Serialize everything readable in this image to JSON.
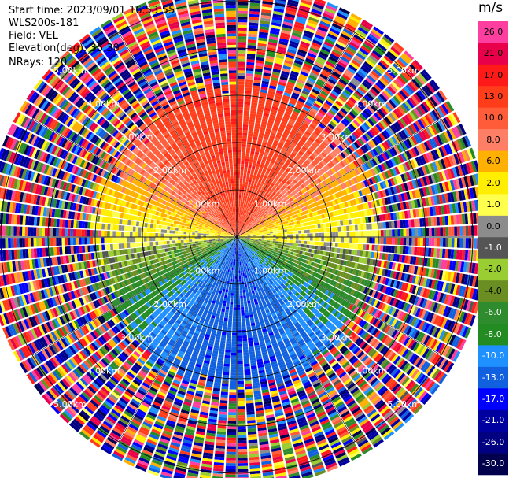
{
  "info": {
    "start_time": "Start time: 2023/09/01 16:53:55",
    "instrument": "WLS200s-181",
    "field": "Field: VEL",
    "elevation": "Elevation(deg): 35.30",
    "nrays": "NRays: 120"
  },
  "colorbar": {
    "title": "m/s",
    "labels": [
      "26.0",
      "21.0",
      "17.0",
      "13.0",
      "10.0",
      "8.0",
      "6.0",
      "2.0",
      "1.0",
      "0.0",
      "-1.0",
      "-2.0",
      "-4.0",
      "-6.0",
      "-8.0",
      "-10.0",
      "-13.0",
      "-17.0",
      "-21.0",
      "-26.0",
      "-30.0"
    ],
    "colors": [
      "#ff3fa0",
      "#e8004a",
      "#ff1a1a",
      "#ff3d1a",
      "#ff5c3a",
      "#ff7f66",
      "#ffb000",
      "#ffee00",
      "#ffff4d",
      "#8c8c8c",
      "#555555",
      "#9acd32",
      "#6b8e23",
      "#2e8b2e",
      "#228b22",
      "#1e90ff",
      "#1060e0",
      "#0000ff",
      "#0000a0",
      "#000080",
      "#00004d"
    ],
    "light_text": [
      false,
      false,
      false,
      false,
      false,
      false,
      false,
      false,
      false,
      false,
      true,
      false,
      false,
      true,
      true,
      true,
      true,
      true,
      true,
      true,
      true
    ]
  },
  "chart_data": {
    "type": "heatmap",
    "projection": "polar-ppi",
    "nrays": 120,
    "rings_km": [
      1,
      2,
      3,
      4,
      5
    ],
    "ring_labels": [
      "1.00km",
      "2.00km",
      "3.00km",
      "4.00km",
      "5.00km"
    ],
    "velocity_range": [
      -30,
      26
    ],
    "pattern_summary": [
      {
        "sector": "north",
        "range_km": [
          0,
          3.3
        ],
        "velocity_ms": 13
      },
      {
        "sector": "east-west band",
        "range_km": [
          0,
          3.5
        ],
        "velocity_ms": 2
      },
      {
        "sector": "south",
        "range_km": [
          0,
          3.2
        ],
        "velocity_ms": -13
      },
      {
        "sector": "outer noise",
        "range_km": [
          3.3,
          5.3
        ],
        "velocity_ms": "random"
      }
    ]
  }
}
